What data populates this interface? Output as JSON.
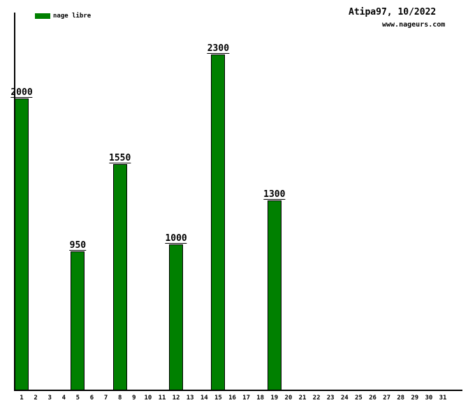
{
  "header": {
    "title": "Atipa97, 10/2022",
    "site": "www.nageurs.com"
  },
  "legend": {
    "label": "nage libre",
    "color": "#008000"
  },
  "colors": {
    "bar_fill": "#008000",
    "bar_border": "#000000",
    "axis": "#000000",
    "text": "#000000",
    "background": "#ffffff"
  },
  "chart_data": {
    "type": "bar",
    "title": "Atipa97, 10/2022",
    "subtitle": "www.nageurs.com",
    "xlabel": "",
    "ylabel": "",
    "legend_position": "top-left",
    "grid": false,
    "bar_color": "#008000",
    "ylim": [
      0,
      2600
    ],
    "categories": [
      "1",
      "2",
      "3",
      "4",
      "5",
      "6",
      "7",
      "8",
      "9",
      "10",
      "11",
      "12",
      "13",
      "14",
      "15",
      "16",
      "17",
      "18",
      "19",
      "20",
      "21",
      "22",
      "23",
      "24",
      "25",
      "26",
      "27",
      "28",
      "29",
      "30",
      "31"
    ],
    "series": [
      {
        "name": "nage libre",
        "values": [
          2000,
          0,
          0,
          0,
          950,
          0,
          0,
          1550,
          0,
          0,
          0,
          1000,
          0,
          0,
          2300,
          0,
          0,
          0,
          1300,
          0,
          0,
          0,
          0,
          0,
          0,
          0,
          0,
          0,
          0,
          0,
          0
        ]
      }
    ],
    "data_labels_shown": [
      "2000",
      "950",
      "1550",
      "1000",
      "2300",
      "1300"
    ]
  }
}
